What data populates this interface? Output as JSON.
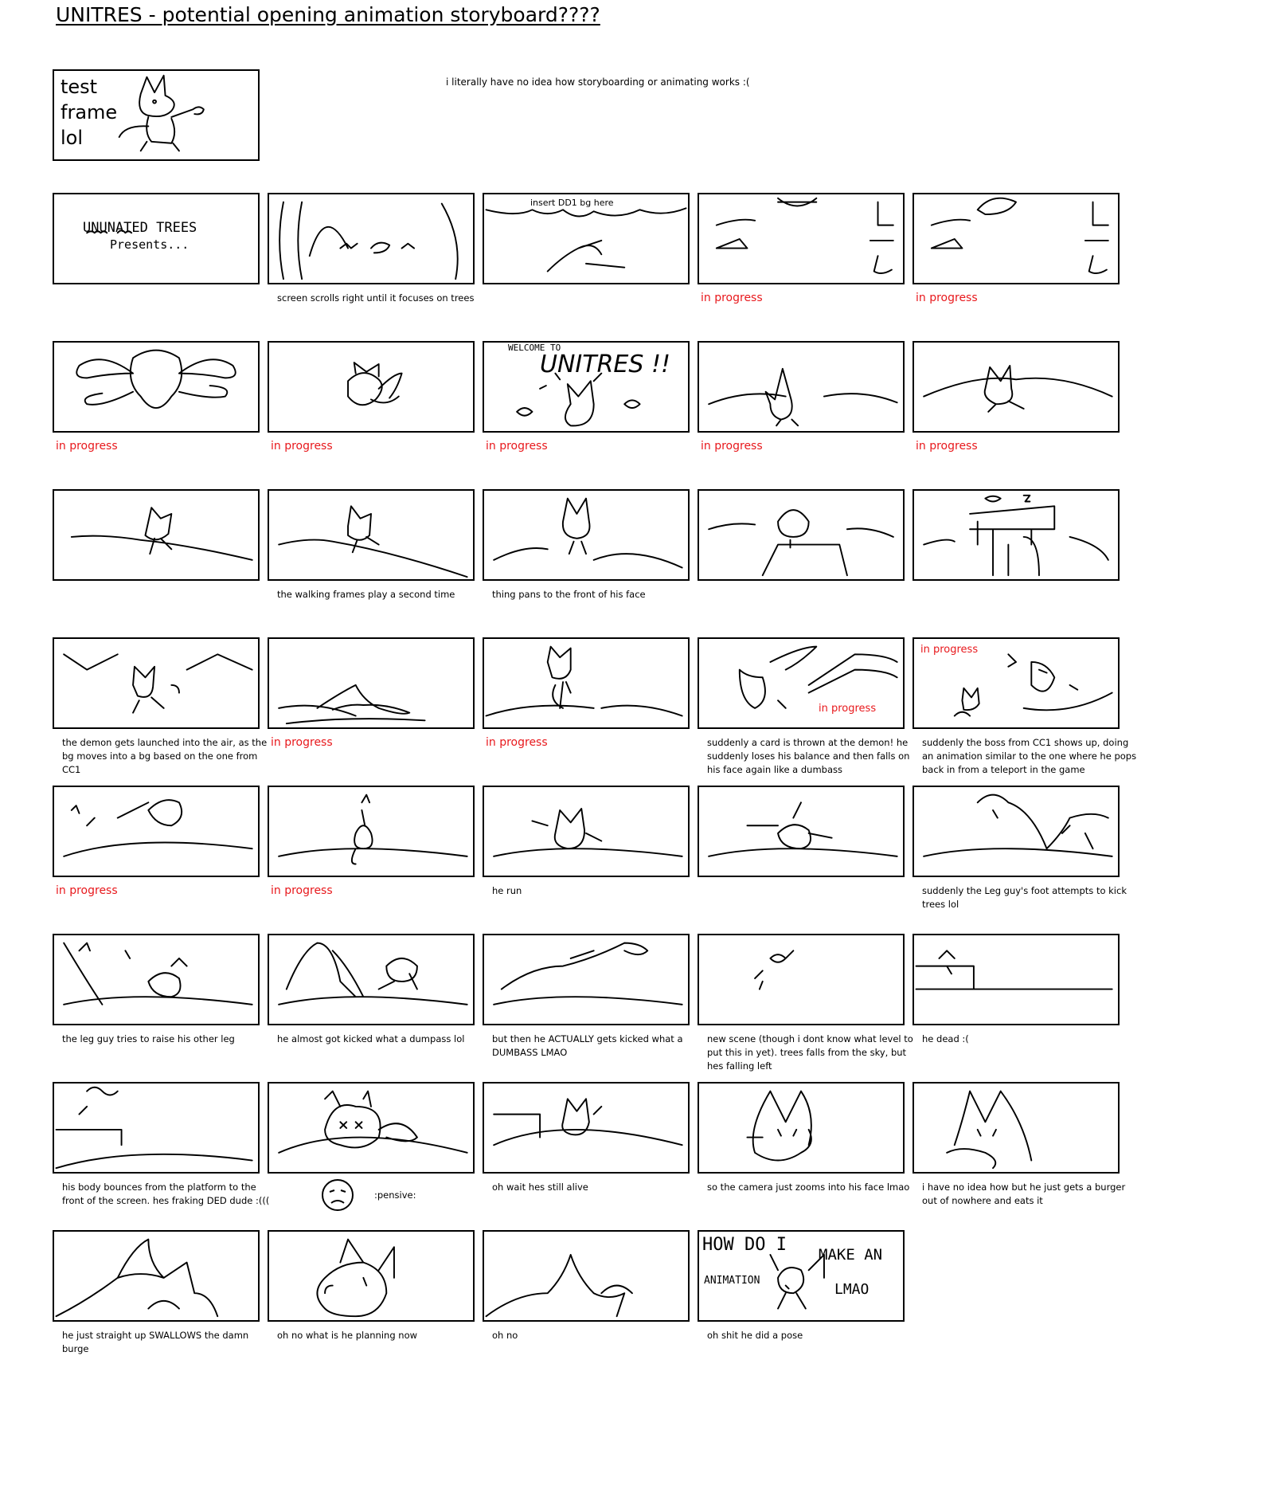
{
  "title": "UNITRES - potential opening animation storyboard????",
  "note": "i literally have no idea how storyboarding or animating works :(",
  "test_frame": {
    "text_lines": [
      "test",
      "frame",
      "lol"
    ]
  },
  "in_frame_text": {
    "insert_bg": "insert DD1 bg here",
    "presents": [
      "UNUNATED TREES",
      "Presents..."
    ],
    "welcome": "WELCOME TO",
    "unitres": "UNITRES !!",
    "how_do_i": [
      "HOW DO I",
      "MAKE AN",
      "ANIMATION",
      "LMAO"
    ]
  },
  "rows": [
    [
      {
        "caption": ""
      },
      {
        "caption": "screen scrolls right until it focuses on trees"
      },
      {
        "caption": ""
      },
      {
        "caption": "in progress",
        "red": true
      },
      {
        "caption": "in progress",
        "red": true
      }
    ],
    [
      {
        "caption": "in progress",
        "red": true
      },
      {
        "caption": "in progress",
        "red": true
      },
      {
        "caption": "in progress",
        "red": true
      },
      {
        "caption": "in progress",
        "red": true
      },
      {
        "caption": "in progress",
        "red": true
      }
    ],
    [
      {
        "caption": ""
      },
      {
        "caption": "the walking frames play a second time"
      },
      {
        "caption": "thing pans to the front of his face"
      },
      {
        "caption": ""
      },
      {
        "caption": ""
      }
    ],
    [
      {
        "caption": "the demon gets launched into the air, as the bg moves into a bg based on the one from CC1"
      },
      {
        "caption": "in progress",
        "red": true
      },
      {
        "caption": "in progress",
        "red": true
      },
      {
        "caption": "suddenly a card is thrown at the demon! he suddenly loses his balance and then falls on his face again like a dumbass",
        "inner_red": "in progress"
      },
      {
        "caption": "suddenly the boss from CC1 shows up, doing an animation similar to the one where he pops back in from a teleport in the game",
        "inner_red": "in progress"
      }
    ],
    [
      {
        "caption": "in progress",
        "red": true
      },
      {
        "caption": "in progress",
        "red": true
      },
      {
        "caption": "he run"
      },
      {
        "caption": ""
      },
      {
        "caption": "suddenly the Leg guy's foot attempts to kick trees lol"
      }
    ],
    [
      {
        "caption": "the leg guy tries to raise his other leg"
      },
      {
        "caption": "he almost got kicked what a dumpass lol"
      },
      {
        "caption": "but then he ACTUALLY gets kicked what a DUMBASS LMAO"
      },
      {
        "caption": "new scene (though i dont know what level to put this in yet). trees falls from the sky, but hes falling left"
      },
      {
        "caption": "he dead :("
      }
    ],
    [
      {
        "caption": "his body bounces from the platform to the front of the screen. hes fraking DED dude :((("
      },
      {
        "caption": ""
      },
      {
        "caption": "oh wait hes still alive"
      },
      {
        "caption": "so the camera just zooms into his face lmao"
      },
      {
        "caption": "i have no idea how but he just gets a burger out of nowhere and eats it"
      }
    ],
    [
      {
        "caption": "he just straight up SWALLOWS the damn burge"
      },
      {
        "caption": "oh no what is he planning now"
      },
      {
        "caption": "oh no"
      },
      {
        "caption": "oh shit he did a pose"
      }
    ]
  ],
  "pensive": ":pensive:"
}
